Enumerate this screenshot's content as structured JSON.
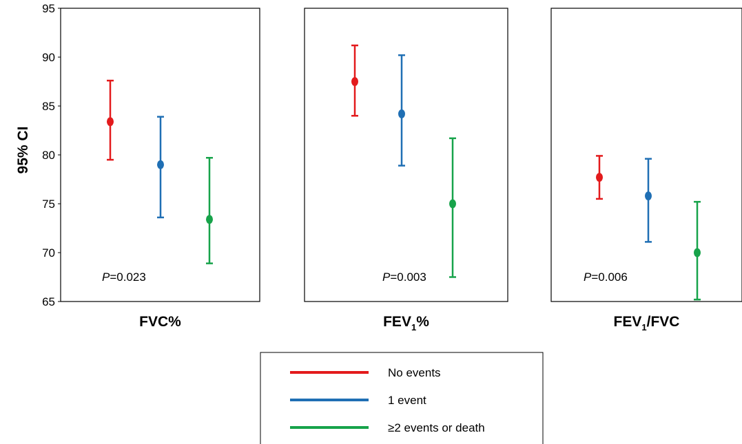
{
  "chart_data": {
    "type": "errorbar",
    "ylabel": "95% CI",
    "ylim": [
      65,
      95
    ],
    "yticks": [
      95,
      90,
      85,
      80,
      75,
      70,
      65
    ],
    "grid": false,
    "legend_position": "bottom-center",
    "series": [
      {
        "name": "No events",
        "color": "#e31a1c"
      },
      {
        "name": "1 event",
        "color": "#1f6fb4"
      },
      {
        "name": "≥2 events or death",
        "color": "#17a34a"
      }
    ],
    "panels": [
      {
        "label": "FVC%",
        "label_main": "FVC%",
        "label_sub": "",
        "label_tail": "",
        "p_prefix": "P",
        "p_value": "=0.023",
        "groups": [
          {
            "series": "No events",
            "mean": 83.4,
            "lower": 79.5,
            "upper": 87.6
          },
          {
            "series": "1 event",
            "mean": 79.0,
            "lower": 73.6,
            "upper": 83.9
          },
          {
            "series": "≥2 events or death",
            "mean": 73.4,
            "lower": 68.9,
            "upper": 79.7
          }
        ]
      },
      {
        "label": "FEV1%",
        "label_main": "FEV",
        "label_sub": "1",
        "label_tail": "%",
        "p_prefix": "P",
        "p_value": "=0.003",
        "groups": [
          {
            "series": "No events",
            "mean": 87.5,
            "lower": 84.0,
            "upper": 91.2
          },
          {
            "series": "1 event",
            "mean": 84.2,
            "lower": 78.9,
            "upper": 90.2
          },
          {
            "series": "≥2 events or death",
            "mean": 75.0,
            "lower": 67.5,
            "upper": 81.7
          }
        ]
      },
      {
        "label": "FEV1/FVC",
        "label_main": "FEV",
        "label_sub": "1",
        "label_tail": "/FVC",
        "p_prefix": "P",
        "p_value": "=0.006",
        "groups": [
          {
            "series": "No events",
            "mean": 77.7,
            "lower": 75.5,
            "upper": 79.9
          },
          {
            "series": "1 event",
            "mean": 75.8,
            "lower": 71.1,
            "upper": 79.6
          },
          {
            "series": "≥2 events or death",
            "mean": 70.0,
            "lower": 65.2,
            "upper": 75.2
          }
        ]
      }
    ]
  }
}
